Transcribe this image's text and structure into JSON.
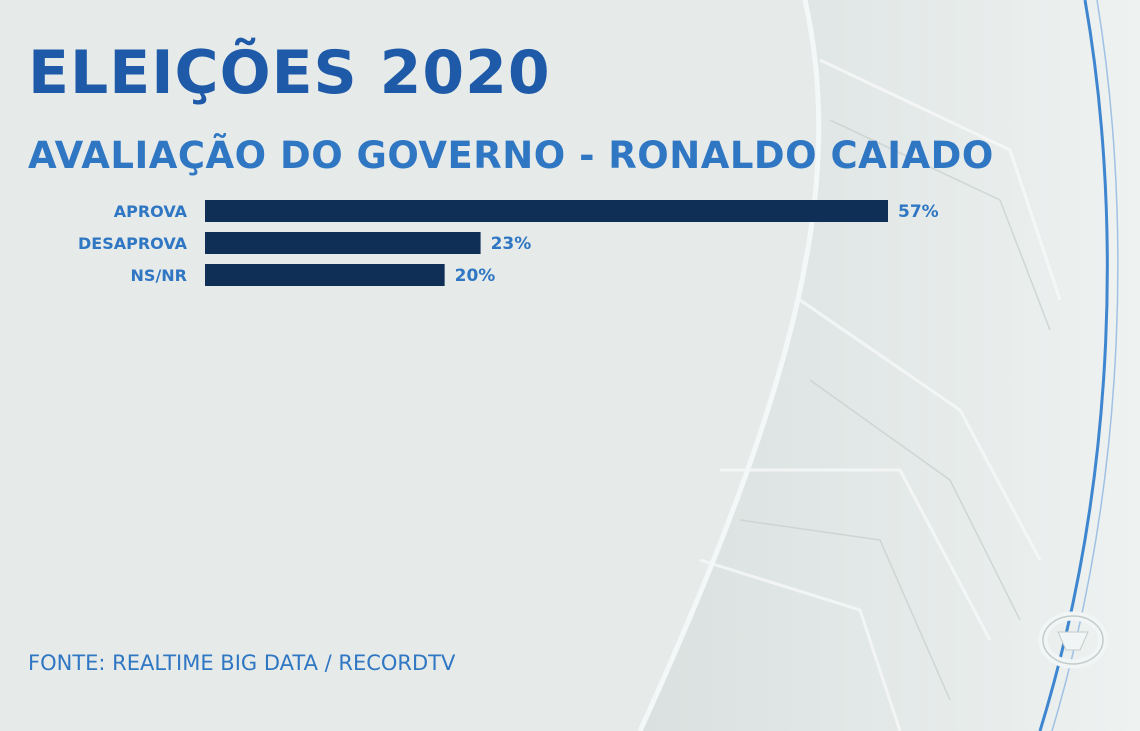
{
  "header": {
    "title": "ELEIÇÕES 2020",
    "subtitle": "AVALIAÇÃO DO GOVERNO - RONALDO CAIADO"
  },
  "footer": {
    "source": "FONTE: REALTIME BIG DATA / RECORDTV"
  },
  "colors": {
    "bar": "#0f2f56",
    "category_label": "#2f76c3",
    "value_label": "#2f76c3",
    "title": "#1e5aa8",
    "accent_line": "#3f86d0"
  },
  "logo": {
    "icon": "recordtv-logo-icon"
  },
  "chart_data": {
    "type": "bar",
    "orientation": "horizontal",
    "categories": [
      "APROVA",
      "DESAPROVA",
      "NS/NR"
    ],
    "values": [
      57,
      23,
      20
    ],
    "value_labels": [
      "57%",
      "23%",
      "20%"
    ],
    "unit": "%",
    "xlim": [
      0,
      57
    ],
    "grid": false,
    "legend": "none"
  }
}
